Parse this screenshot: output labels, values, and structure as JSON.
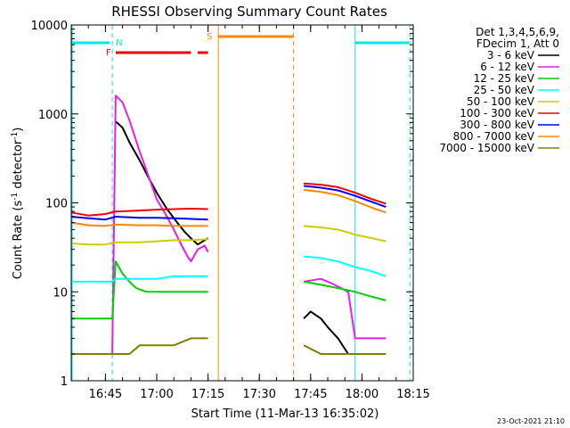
{
  "chart_data": {
    "type": "line",
    "title": "RHESSI Observing Summary Count Rates",
    "xlabel": "Start Time (11-Mar-13 16:35:02)",
    "ylabel_main": "Count Rate (s",
    "ylabel_sup1": "-1",
    "ylabel_mid": " detector",
    "ylabel_sup2": "-1",
    "ylabel_end": ")",
    "y_scale": "log",
    "ylim": [
      1,
      10000
    ],
    "xlim": [
      "16:35",
      "18:15"
    ],
    "x_ticks": [
      "16:45",
      "17:00",
      "17:15",
      "17:30",
      "17:45",
      "18:00",
      "18:15"
    ],
    "y_ticks": [
      "1",
      "10",
      "100",
      "1000",
      "10000"
    ],
    "legend_position": "right",
    "legend_header": [
      "Det 1,3,4,5,6,9,",
      "FDecim 1, Att 0"
    ],
    "series": [
      {
        "name": "3 - 6 keV",
        "color": "#000000",
        "points": [
          [
            "16:35",
            null
          ],
          [
            "16:47",
            null
          ],
          [
            "16:48",
            820
          ],
          [
            "16:50",
            700
          ],
          [
            "16:52",
            480
          ],
          [
            "16:55",
            300
          ],
          [
            "16:58",
            180
          ],
          [
            "17:00",
            130
          ],
          [
            "17:03",
            85
          ],
          [
            "17:06",
            60
          ],
          [
            "17:08",
            48
          ],
          [
            "17:10",
            40
          ],
          [
            "17:12",
            34
          ],
          [
            "17:14",
            38
          ],
          [
            "17:15",
            40
          ],
          [
            null,
            null
          ],
          [
            "17:43",
            5
          ],
          [
            "17:45",
            6
          ],
          [
            "17:48",
            5
          ],
          [
            "17:50",
            4
          ],
          [
            "17:53",
            3
          ],
          [
            "17:56",
            2
          ],
          [
            "17:58",
            2
          ]
        ]
      },
      {
        "name": "6 - 12 keV",
        "color": "#e81ee8",
        "points": [
          [
            "16:35",
            2
          ],
          [
            "16:47",
            2
          ],
          [
            "16:48",
            1600
          ],
          [
            "16:50",
            1350
          ],
          [
            "16:52",
            850
          ],
          [
            "16:55",
            380
          ],
          [
            "16:58",
            180
          ],
          [
            "17:00",
            110
          ],
          [
            "17:03",
            70
          ],
          [
            "17:05",
            50
          ],
          [
            "17:07",
            35
          ],
          [
            "17:09",
            25
          ],
          [
            "17:10",
            22
          ],
          [
            "17:12",
            30
          ],
          [
            "17:14",
            33
          ],
          [
            "17:15",
            28
          ],
          [
            null,
            null
          ],
          [
            "17:43",
            13
          ],
          [
            "17:48",
            14
          ],
          [
            "17:50",
            13
          ],
          [
            "17:52",
            12
          ],
          [
            "17:56",
            10
          ],
          [
            "17:58",
            3
          ],
          [
            "18:07",
            3
          ]
        ]
      },
      {
        "name": "12 - 25 keV",
        "color": "#00d000",
        "points": [
          [
            "16:35",
            5
          ],
          [
            "16:47",
            5
          ],
          [
            "16:48",
            22
          ],
          [
            "16:50",
            16
          ],
          [
            "16:52",
            13
          ],
          [
            "16:54",
            11
          ],
          [
            "16:57",
            10
          ],
          [
            "17:00",
            10
          ],
          [
            "17:05",
            10
          ],
          [
            "17:10",
            10
          ],
          [
            "17:15",
            10
          ],
          [
            null,
            null
          ],
          [
            "17:43",
            13
          ],
          [
            "17:48",
            12
          ],
          [
            "17:53",
            11
          ],
          [
            "17:58",
            10
          ],
          [
            "18:02",
            9
          ],
          [
            "18:07",
            8
          ]
        ]
      },
      {
        "name": "25 - 50 keV",
        "color": "#00ffff",
        "points": [
          [
            "16:35",
            13
          ],
          [
            "16:40",
            13
          ],
          [
            "16:45",
            13
          ],
          [
            "16:47",
            13
          ],
          [
            "16:48",
            14
          ],
          [
            "16:50",
            14
          ],
          [
            "16:55",
            14
          ],
          [
            "17:00",
            14
          ],
          [
            "17:05",
            15
          ],
          [
            "17:10",
            15
          ],
          [
            "17:15",
            15
          ],
          [
            null,
            null
          ],
          [
            "17:43",
            25
          ],
          [
            "17:48",
            24
          ],
          [
            "17:53",
            22
          ],
          [
            "17:58",
            19
          ],
          [
            "18:03",
            17
          ],
          [
            "18:07",
            15
          ]
        ]
      },
      {
        "name": "50 - 100 keV",
        "color": "#cccc00",
        "points": [
          [
            "16:35",
            35
          ],
          [
            "16:40",
            34
          ],
          [
            "16:45",
            34
          ],
          [
            "16:48",
            36
          ],
          [
            "16:55",
            36
          ],
          [
            "17:00",
            37
          ],
          [
            "17:05",
            38
          ],
          [
            "17:10",
            38
          ],
          [
            "17:15",
            39
          ],
          [
            null,
            null
          ],
          [
            "17:43",
            55
          ],
          [
            "17:48",
            53
          ],
          [
            "17:53",
            50
          ],
          [
            "17:58",
            44
          ],
          [
            "18:03",
            40
          ],
          [
            "18:07",
            37
          ]
        ]
      },
      {
        "name": "100 - 300 keV",
        "color": "#ee0000",
        "points": [
          [
            "16:35",
            78
          ],
          [
            "16:40",
            72
          ],
          [
            "16:45",
            75
          ],
          [
            "16:48",
            80
          ],
          [
            "16:55",
            82
          ],
          [
            "17:00",
            84
          ],
          [
            "17:05",
            85
          ],
          [
            "17:10",
            86
          ],
          [
            "17:15",
            85
          ],
          [
            null,
            null
          ],
          [
            "17:43",
            165
          ],
          [
            "17:48",
            160
          ],
          [
            "17:53",
            150
          ],
          [
            "17:58",
            130
          ],
          [
            "18:03",
            110
          ],
          [
            "18:07",
            98
          ]
        ]
      },
      {
        "name": "300 - 800 keV",
        "color": "#0000ee",
        "points": [
          [
            "16:35",
            70
          ],
          [
            "16:40",
            67
          ],
          [
            "16:45",
            65
          ],
          [
            "16:48",
            70
          ],
          [
            "16:55",
            68
          ],
          [
            "17:00",
            68
          ],
          [
            "17:05",
            67
          ],
          [
            "17:10",
            66
          ],
          [
            "17:15",
            65
          ],
          [
            null,
            null
          ],
          [
            "17:43",
            155
          ],
          [
            "17:48",
            148
          ],
          [
            "17:53",
            138
          ],
          [
            "17:58",
            120
          ],
          [
            "18:03",
            102
          ],
          [
            "18:07",
            90
          ]
        ]
      },
      {
        "name": "800 - 7000 keV",
        "color": "#ff8800",
        "points": [
          [
            "16:35",
            60
          ],
          [
            "16:40",
            56
          ],
          [
            "16:45",
            55
          ],
          [
            "16:48",
            57
          ],
          [
            "16:55",
            56
          ],
          [
            "17:00",
            56
          ],
          [
            "17:05",
            55
          ],
          [
            "17:10",
            55
          ],
          [
            "17:15",
            55
          ],
          [
            null,
            null
          ],
          [
            "17:43",
            140
          ],
          [
            "17:48",
            133
          ],
          [
            "17:53",
            122
          ],
          [
            "17:58",
            105
          ],
          [
            "18:03",
            88
          ],
          [
            "18:07",
            78
          ]
        ]
      },
      {
        "name": "7000 - 15000 keV",
        "color": "#808000",
        "points": [
          [
            "16:35",
            2
          ],
          [
            "16:40",
            2
          ],
          [
            "16:45",
            2
          ],
          [
            "16:48",
            2
          ],
          [
            "16:52",
            2
          ],
          [
            "16:55",
            2.5
          ],
          [
            "17:00",
            2.5
          ],
          [
            "17:05",
            2.5
          ],
          [
            "17:10",
            3
          ],
          [
            "17:15",
            3
          ],
          [
            null,
            null
          ],
          [
            "17:43",
            2.5
          ],
          [
            "17:48",
            2
          ],
          [
            "17:53",
            2
          ],
          [
            "17:58",
            2
          ],
          [
            "18:03",
            2
          ],
          [
            "18:07",
            2
          ]
        ]
      }
    ],
    "state_bars": [
      {
        "flag": "N",
        "color": "#00e8e8",
        "text": "N"
      },
      {
        "flag": "F",
        "color": "#ee0000",
        "text": "F"
      },
      {
        "flag": "S",
        "color": "#ff8800",
        "text": "S"
      }
    ],
    "footer_date": "23-Oct-2021 21:10"
  }
}
